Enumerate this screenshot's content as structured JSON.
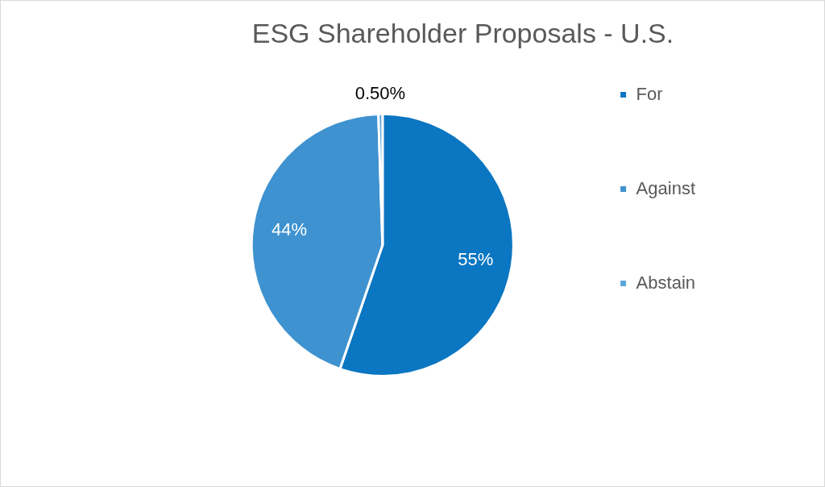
{
  "chart_data": {
    "type": "pie",
    "title": "ESG Shareholder Proposals - U.S.",
    "categories": [
      "For",
      "Against",
      "Abstain"
    ],
    "values": [
      55,
      44,
      0.5
    ],
    "value_labels": [
      "55%",
      "44%",
      "0.50%"
    ],
    "colors": [
      "#0B76C1",
      "#3E92CF",
      "#5EA7DA"
    ],
    "legend": "right",
    "data_labels": true
  }
}
